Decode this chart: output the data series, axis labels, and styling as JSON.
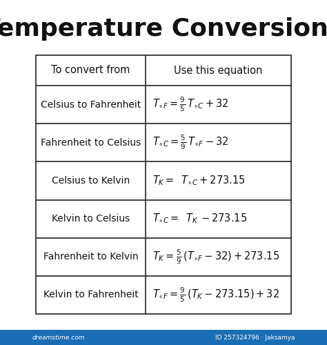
{
  "title": "Temperature Conversions",
  "title_fontsize": 26,
  "title_fontweight": "bold",
  "background_color": "#ffffff",
  "table_border_color": "#333333",
  "header_row": [
    "To convert from",
    "Use this equation"
  ],
  "left_col": [
    "Celsius to Fahrenheit",
    "Fahrenheit to Celsius",
    "Celsius to Kelvin",
    "Kelvin to Celsius",
    "Fahrenheit to Kelvin",
    "Kelvin to Fahrenheit"
  ],
  "watermark": "dreamstime.com",
  "watermark2": "ID 257324796 · Jaksamya",
  "fig_width": 4.74,
  "fig_height": 5.0,
  "dpi": 100
}
